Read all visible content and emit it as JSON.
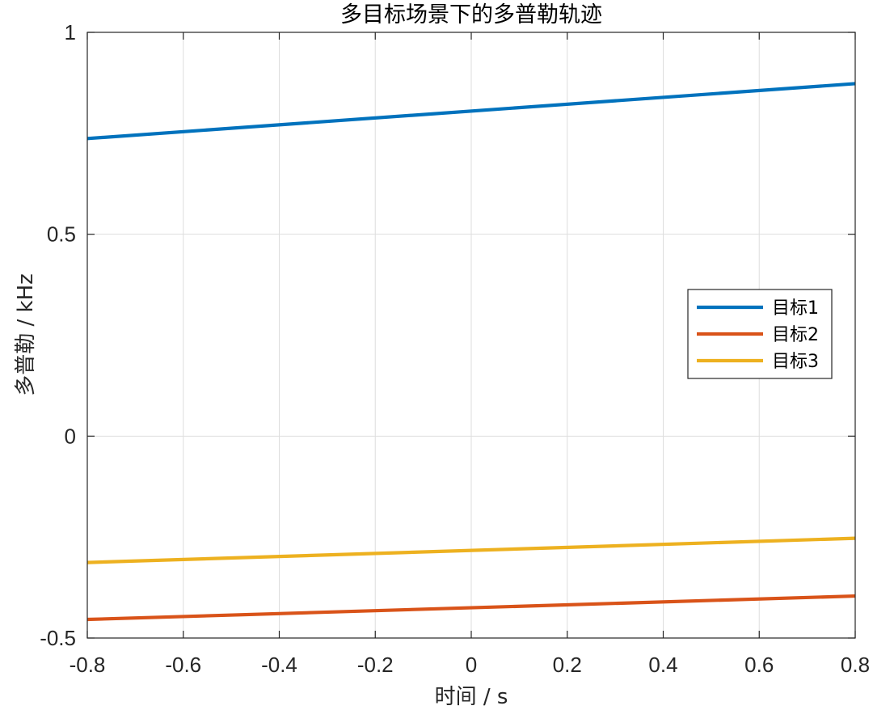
{
  "chart_data": {
    "type": "line",
    "title": "多目标场景下的多普勒轨迹",
    "xlabel": "时间 / s",
    "ylabel": "多普勒 / kHz",
    "xlim": [
      -0.8,
      0.8
    ],
    "ylim": [
      -0.5,
      1
    ],
    "x_ticks": [
      -0.8,
      -0.6,
      -0.4,
      -0.2,
      0,
      0.2,
      0.4,
      0.6,
      0.8
    ],
    "x_tick_labels": [
      "-0.8",
      "-0.6",
      "-0.4",
      "-0.2",
      "0",
      "0.2",
      "0.4",
      "0.6",
      "0.8"
    ],
    "y_ticks": [
      -0.5,
      0,
      0.5,
      1
    ],
    "y_tick_labels": [
      "-0.5",
      "0",
      "0.5",
      "1"
    ],
    "grid": true,
    "legend_position": "right",
    "x": [
      -0.8,
      0.8
    ],
    "series": [
      {
        "name": "目标1",
        "color": "#0072BD",
        "x": [
          -0.8,
          0.8
        ],
        "values": [
          0.737,
          0.873
        ]
      },
      {
        "name": "目标2",
        "color": "#D95319",
        "x": [
          -0.8,
          0.8
        ],
        "values": [
          -0.454,
          -0.396
        ]
      },
      {
        "name": "目标3",
        "color": "#EDB120",
        "x": [
          -0.8,
          0.8
        ],
        "values": [
          -0.313,
          -0.253
        ]
      }
    ]
  }
}
